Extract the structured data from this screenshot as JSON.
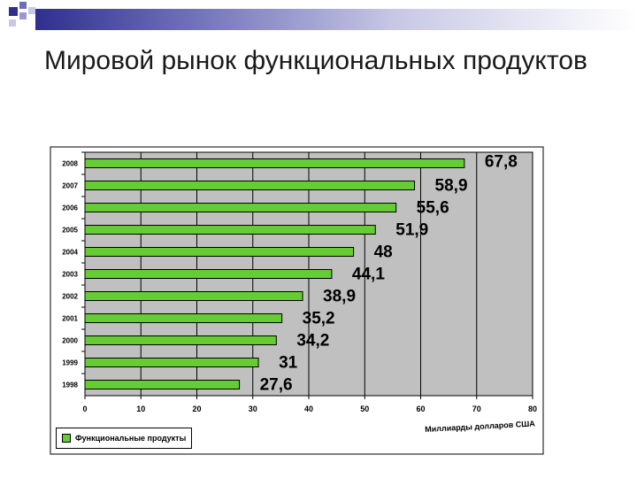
{
  "slide": {
    "title": "Мировой рынок функциональных продуктов"
  },
  "colors": {
    "bar_fill": "#66cc33",
    "plot_background": "#c0c0c0",
    "deco_dark": "#2f2f8f",
    "deco_light": "#9a9acf"
  },
  "chart_data": {
    "type": "bar",
    "orientation": "horizontal",
    "categories": [
      "2008",
      "2007",
      "2006",
      "2005",
      "2004",
      "2003",
      "2002",
      "2001",
      "2000",
      "1999",
      "1998"
    ],
    "series": [
      {
        "name": "Функциональные продукты",
        "values": [
          67.8,
          58.9,
          55.6,
          51.9,
          48,
          44.1,
          38.9,
          35.2,
          34.2,
          31,
          27.6
        ]
      }
    ],
    "data_labels": [
      "67,8",
      "58,9",
      "55,6",
      "51,9",
      "48",
      "44,1",
      "38,9",
      "35,2",
      "34,2",
      "31",
      "27,6"
    ],
    "x_ticks": [
      "0",
      "10",
      "20",
      "30",
      "40",
      "50",
      "60",
      "70",
      "80"
    ],
    "xlim": [
      0,
      80
    ],
    "xlabel": "Миллиарды долларов США",
    "grid": true,
    "legend": "bottom-left"
  }
}
